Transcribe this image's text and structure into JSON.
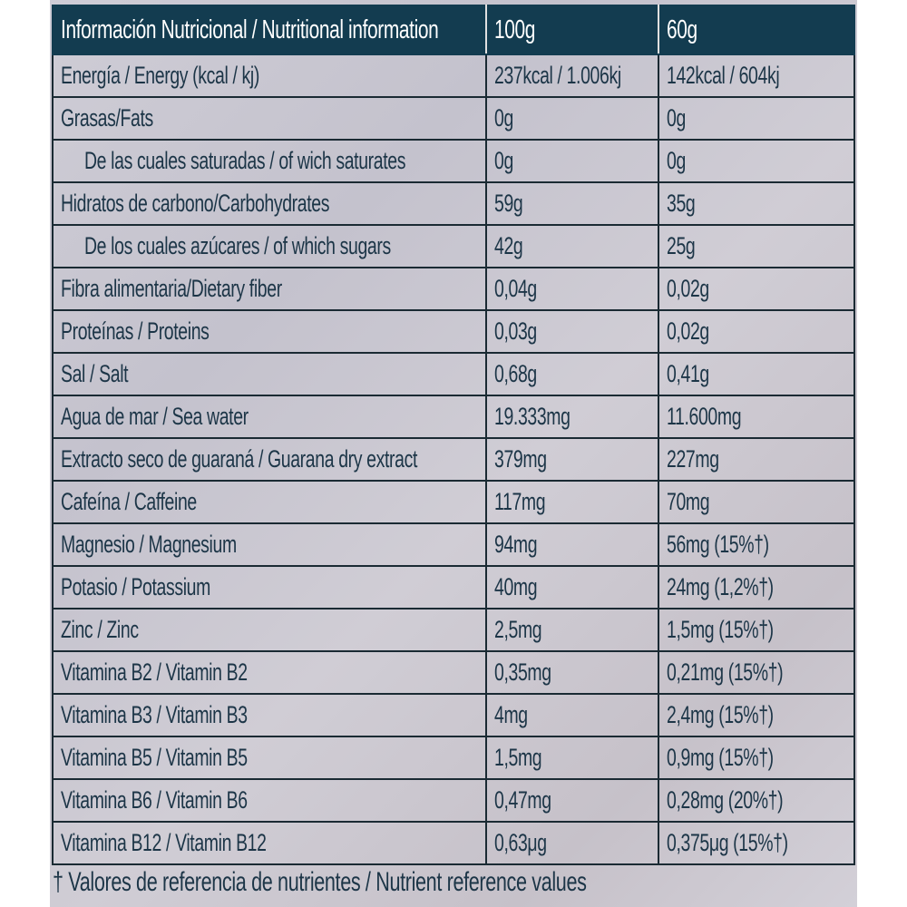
{
  "colors": {
    "header_bg": "#133c50",
    "text": "#1c3547",
    "background": "#cac8d2"
  },
  "table": {
    "headers": [
      "Información Nutricional / Nutritional information",
      "100g",
      "60g"
    ],
    "rows": [
      {
        "label": "Energía / Energy (kcal / kj)",
        "v100": "237kcal / 1.006kj",
        "v60": "142kcal / 604kj",
        "indent": false
      },
      {
        "label": "Grasas/Fats",
        "v100": "0g",
        "v60": "0g",
        "indent": false
      },
      {
        "label": "De las cuales saturadas / of wich saturates",
        "v100": "0g",
        "v60": "0g",
        "indent": true
      },
      {
        "label": "Hidratos de carbono/Carbohydrates",
        "v100": "59g",
        "v60": "35g",
        "indent": false
      },
      {
        "label": "De los cuales azúcares / of which sugars",
        "v100": "42g",
        "v60": "25g",
        "indent": true
      },
      {
        "label": "Fibra alimentaria/Dietary fiber",
        "v100": "0,04g",
        "v60": "0,02g",
        "indent": false
      },
      {
        "label": "Proteínas / Proteins",
        "v100": "0,03g",
        "v60": "0,02g",
        "indent": false
      },
      {
        "label": "Sal / Salt",
        "v100": "0,68g",
        "v60": "0,41g",
        "indent": false
      },
      {
        "label": "Agua de mar / Sea water",
        "v100": "19.333mg",
        "v60": "11.600mg",
        "indent": false
      },
      {
        "label": "Extracto seco de guaraná / Guarana dry extract",
        "v100": "379mg",
        "v60": "227mg",
        "indent": false
      },
      {
        "label": "Cafeína / Caffeine",
        "v100": "117mg",
        "v60": "70mg",
        "indent": false
      },
      {
        "label": "Magnesio / Magnesium",
        "v100": "94mg",
        "v60": "56mg (15%†)",
        "indent": false
      },
      {
        "label": "Potasio / Potassium",
        "v100": "40mg",
        "v60": "24mg (1,2%†)",
        "indent": false
      },
      {
        "label": "Zinc / Zinc",
        "v100": "2,5mg",
        "v60": "1,5mg (15%†)",
        "indent": false
      },
      {
        "label": "Vitamina B2 / Vitamin B2",
        "v100": "0,35mg",
        "v60": "0,21mg (15%†)",
        "indent": false
      },
      {
        "label": "Vitamina B3 / Vitamin B3",
        "v100": "4mg",
        "v60": "2,4mg (15%†)",
        "indent": false
      },
      {
        "label": "Vitamina B5 / Vitamin B5",
        "v100": "1,5mg",
        "v60": "0,9mg (15%†)",
        "indent": false
      },
      {
        "label": "Vitamina B6 / Vitamin B6",
        "v100": "0,47mg",
        "v60": "0,28mg (20%†)",
        "indent": false
      },
      {
        "label": "Vitamina B12 / Vitamin B12",
        "v100": "0,63μg",
        "v60": "0,375μg (15%†)",
        "indent": false
      }
    ]
  },
  "footer": "† Valores de referencia de nutrientes / Nutrient reference values"
}
